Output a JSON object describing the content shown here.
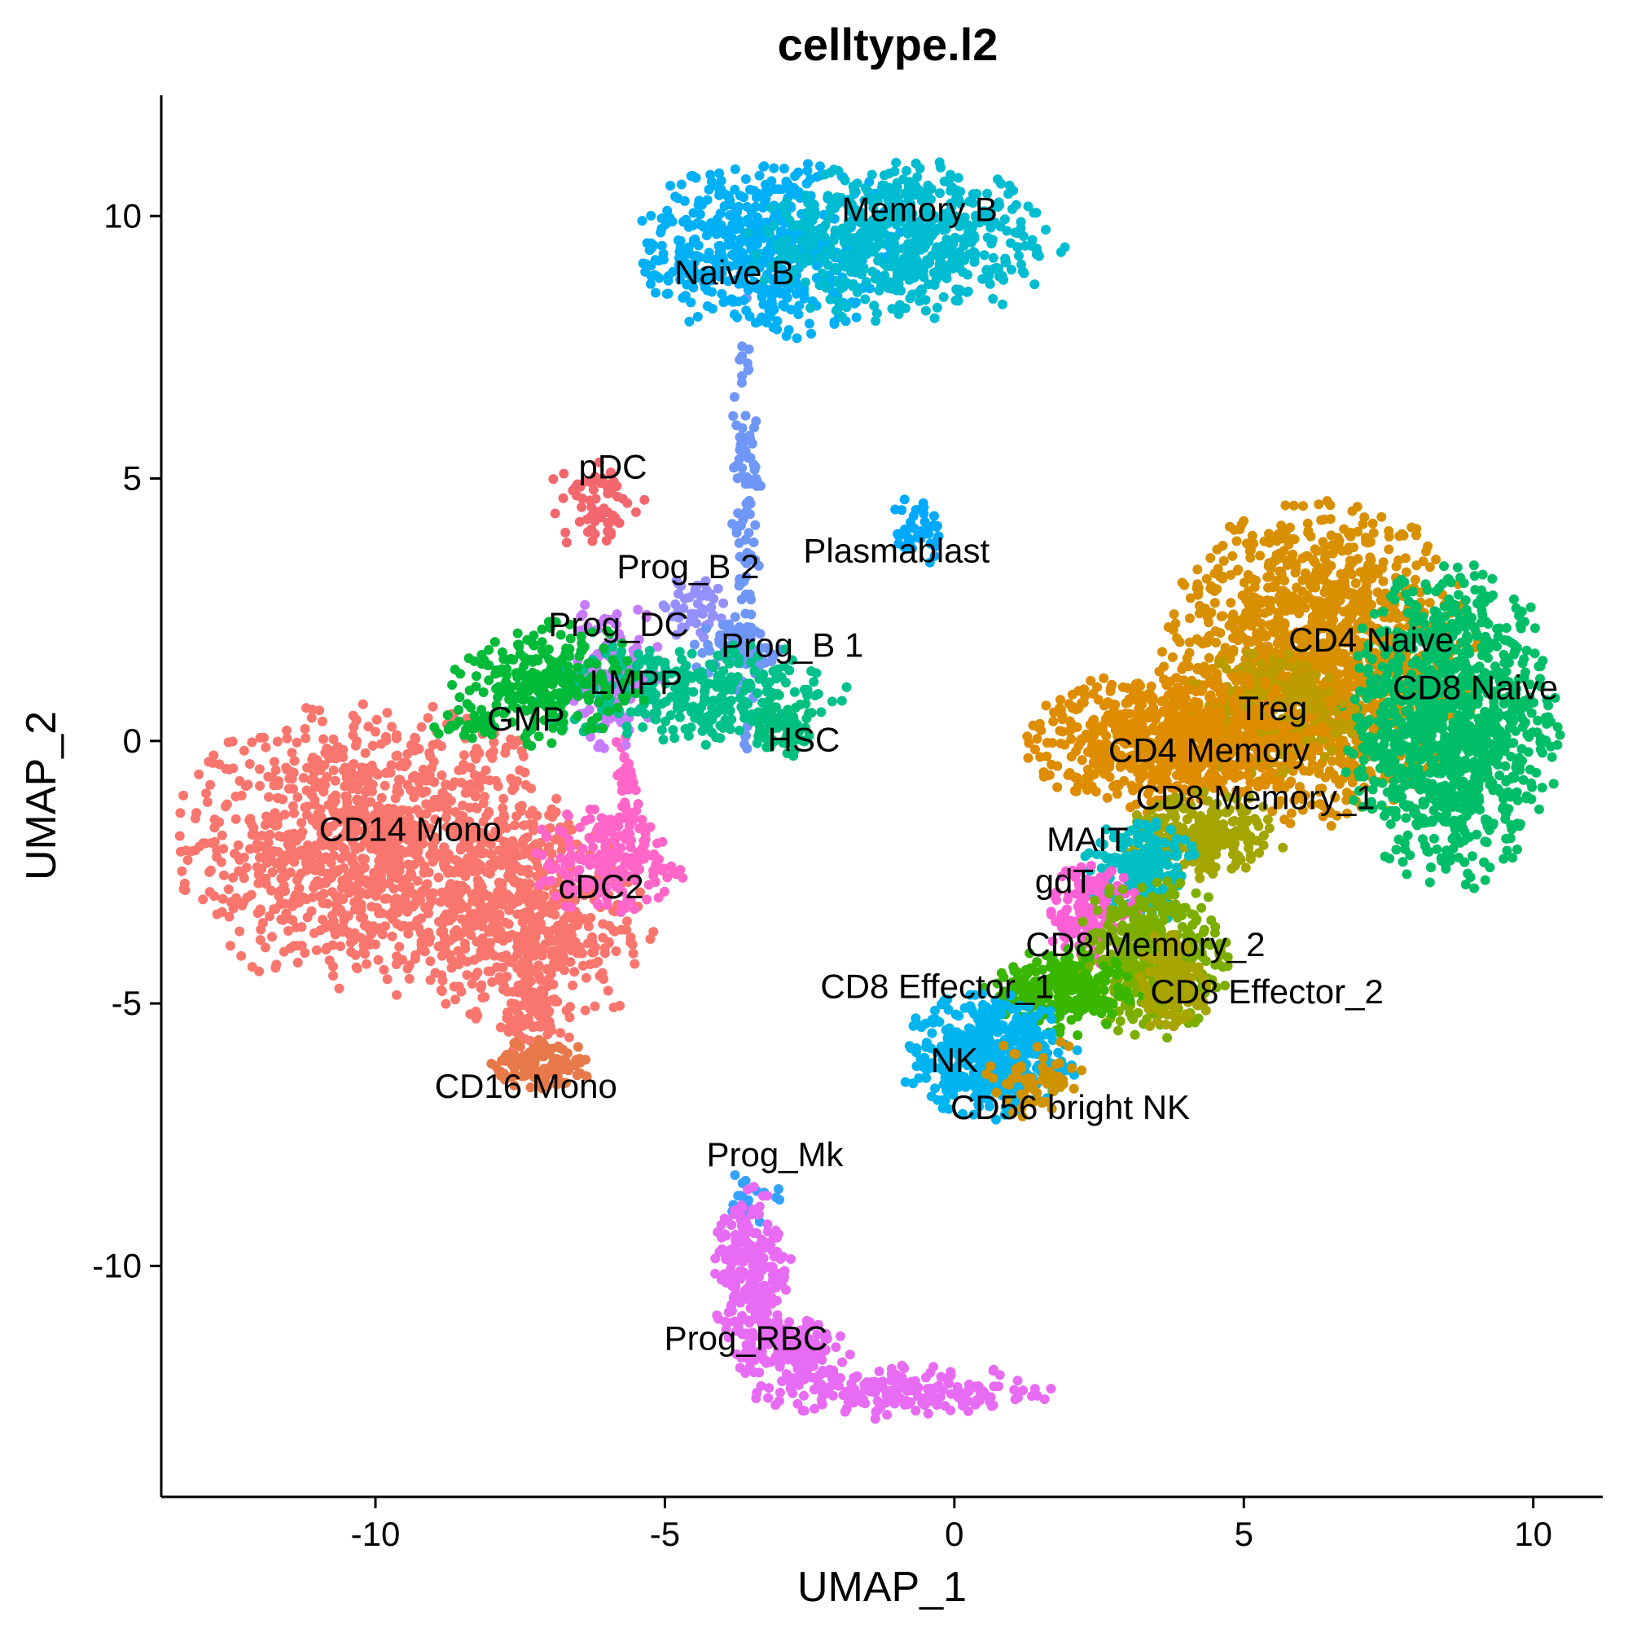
{
  "chart_data": {
    "type": "scatter",
    "title": "celltype.l2",
    "xlabel": "UMAP_1",
    "ylabel": "UMAP_2",
    "xlim": [
      -13.7,
      11.2
    ],
    "ylim": [
      -14.4,
      12.3
    ],
    "xticks": [
      -10,
      -5,
      0,
      5,
      10
    ],
    "yticks": [
      -10,
      -5,
      0,
      5,
      10
    ],
    "xtick_labels": [
      "-10",
      "-5",
      "0",
      "5",
      "10"
    ],
    "ytick_labels": [
      "-10",
      "-5",
      "0",
      "5",
      "10"
    ],
    "grid": false,
    "legend": "none",
    "clusters": [
      {
        "name": "CD14 Mono",
        "color": "#F8766D",
        "label_pos": [
          -9.4,
          -1.9
        ],
        "blobs": [
          {
            "cx": -10,
            "cy": -2,
            "rx": 2.0,
            "ry": 1.7,
            "n": 1200
          },
          {
            "cx": -7.4,
            "cy": -3.5,
            "rx": 1.3,
            "ry": 1.3,
            "n": 500
          },
          {
            "cx": -7.2,
            "cy": -5.2,
            "rx": 0.4,
            "ry": 0.5,
            "n": 60
          }
        ]
      },
      {
        "name": "CD16 Mono",
        "color": "#E8794A",
        "label_pos": [
          -7.4,
          -6.8
        ],
        "blobs": [
          {
            "cx": -7.1,
            "cy": -6.2,
            "rx": 0.6,
            "ry": 0.3,
            "n": 120
          }
        ]
      },
      {
        "name": "cDC2",
        "color": "#FF66C8",
        "label_pos": [
          -6.1,
          -3.0
        ],
        "blobs": [
          {
            "cx": -6.0,
            "cy": -2.3,
            "rx": 0.8,
            "ry": 0.6,
            "n": 200
          },
          {
            "cx": -5.7,
            "cy": -1.0,
            "rx": 0.15,
            "ry": 0.7,
            "n": 40
          }
        ]
      },
      {
        "name": "pDC",
        "color": "#F2676E",
        "label_pos": [
          -5.9,
          5.0
        ],
        "blobs": [
          {
            "cx": -6.2,
            "cy": 4.5,
            "rx": 0.5,
            "ry": 0.6,
            "n": 60
          }
        ]
      },
      {
        "name": "Prog_B 2",
        "color": "#9590FF",
        "label_pos": [
          -4.6,
          3.1
        ],
        "blobs": [
          {
            "cx": -4.5,
            "cy": 2.5,
            "rx": 0.35,
            "ry": 0.4,
            "n": 50
          }
        ]
      },
      {
        "name": "Prog_DC",
        "color": "#C77CFF",
        "label_pos": [
          -5.8,
          2.0
        ],
        "blobs": [
          {
            "cx": -5.9,
            "cy": 1.3,
            "rx": 0.5,
            "ry": 0.9,
            "n": 140
          }
        ]
      },
      {
        "name": "Prog_B 1",
        "color": "#6F97F7",
        "label_pos": [
          -2.8,
          1.6
        ],
        "blobs": [
          {
            "cx": -3.6,
            "cy": 4.0,
            "rx": 0.15,
            "ry": 2.6,
            "n": 120
          },
          {
            "cx": -3.7,
            "cy": 1.7,
            "rx": 0.5,
            "ry": 0.4,
            "n": 60
          }
        ]
      },
      {
        "name": "LMPP",
        "color": "#00C08B",
        "label_pos": [
          -5.5,
          0.9
        ],
        "blobs": [
          {
            "cx": -4.6,
            "cy": 0.9,
            "rx": 1.6,
            "ry": 0.6,
            "n": 300
          }
        ]
      },
      {
        "name": "GMP",
        "color": "#00BA38",
        "label_pos": [
          -7.4,
          0.2
        ],
        "blobs": [
          {
            "cx": -7.0,
            "cy": 1.1,
            "rx": 1.0,
            "ry": 0.7,
            "n": 260
          },
          {
            "cx": -8.4,
            "cy": 0.3,
            "rx": 0.4,
            "ry": 0.2,
            "n": 30
          }
        ]
      },
      {
        "name": "HSC",
        "color": "#00BF7D",
        "label_pos": [
          -2.6,
          -0.2
        ],
        "blobs": [
          {
            "cx": -2.9,
            "cy": 0.3,
            "rx": 0.4,
            "ry": 0.4,
            "n": 60
          }
        ]
      },
      {
        "name": "Naive B",
        "color": "#00B0F6",
        "label_pos": [
          -3.8,
          8.7
        ],
        "blobs": [
          {
            "cx": -3.2,
            "cy": 9.4,
            "rx": 1.4,
            "ry": 1.0,
            "n": 600
          }
        ]
      },
      {
        "name": "Memory B",
        "color": "#00BCD0",
        "label_pos": [
          -0.6,
          9.9
        ],
        "blobs": [
          {
            "cx": -0.8,
            "cy": 9.5,
            "rx": 1.6,
            "ry": 0.9,
            "n": 600
          }
        ]
      },
      {
        "name": "Plasmablast",
        "color": "#00A9FF",
        "label_pos": [
          -1.0,
          3.4
        ],
        "blobs": [
          {
            "cx": -0.6,
            "cy": 4.0,
            "rx": 0.3,
            "ry": 0.4,
            "n": 40
          }
        ]
      },
      {
        "name": "CD4 Naive",
        "color": "#D89000",
        "label_pos": [
          7.2,
          1.7
        ],
        "blobs": [
          {
            "cx": 6.3,
            "cy": 1.5,
            "rx": 1.6,
            "ry": 1.8,
            "n": 1400
          }
        ]
      },
      {
        "name": "CD8 Naive",
        "color": "#00BE67",
        "label_pos": [
          9.0,
          0.8
        ],
        "blobs": [
          {
            "cx": 8.6,
            "cy": 0.3,
            "rx": 1.1,
            "ry": 1.8,
            "n": 1100
          }
        ]
      },
      {
        "name": "Treg",
        "color": "#BB9D00",
        "label_pos": [
          5.5,
          0.4
        ],
        "blobs": [
          {
            "cx": 5.4,
            "cy": 0.5,
            "rx": 0.9,
            "ry": 0.7,
            "n": 300
          }
        ]
      },
      {
        "name": "CD4 Memory",
        "color": "#DE8C00",
        "label_pos": [
          4.4,
          -0.4
        ],
        "blobs": [
          {
            "cx": 3.8,
            "cy": 0.0,
            "rx": 1.5,
            "ry": 0.8,
            "n": 700
          }
        ]
      },
      {
        "name": "CD8 Memory_1",
        "color": "#A3A500",
        "label_pos": [
          5.2,
          -1.3
        ],
        "blobs": [
          {
            "cx": 4.2,
            "cy": -1.8,
            "rx": 0.9,
            "ry": 0.5,
            "n": 250
          }
        ]
      },
      {
        "name": "MAIT",
        "color": "#00BFC4",
        "label_pos": [
          2.3,
          -2.1
        ],
        "blobs": [
          {
            "cx": 3.2,
            "cy": -2.5,
            "rx": 0.6,
            "ry": 0.6,
            "n": 220
          }
        ]
      },
      {
        "name": "gdT",
        "color": "#FB61D7",
        "label_pos": [
          1.9,
          -2.9
        ],
        "blobs": [
          {
            "cx": 2.4,
            "cy": -3.3,
            "rx": 0.5,
            "ry": 0.6,
            "n": 150
          }
        ]
      },
      {
        "name": "CD8 Memory_2",
        "color": "#7CAE00",
        "label_pos": [
          3.3,
          -4.1
        ],
        "blobs": [
          {
            "cx": 3.4,
            "cy": -4.1,
            "rx": 0.8,
            "ry": 0.9,
            "n": 400
          }
        ]
      },
      {
        "name": "CD8 Effector_1",
        "color": "#39B600",
        "label_pos": [
          -0.3,
          -4.9
        ],
        "blobs": [
          {
            "cx": 1.9,
            "cy": -4.8,
            "rx": 0.8,
            "ry": 0.5,
            "n": 250
          }
        ]
      },
      {
        "name": "CD8 Effector_2",
        "color": "#A8A400",
        "label_pos": [
          5.4,
          -5.0
        ],
        "blobs": [
          {
            "cx": 3.8,
            "cy": -4.6,
            "rx": 0.4,
            "ry": 0.6,
            "n": 120
          }
        ]
      },
      {
        "name": "NK",
        "color": "#00B4EF",
        "label_pos": [
          0.0,
          -6.3
        ],
        "blobs": [
          {
            "cx": 0.6,
            "cy": -6.0,
            "rx": 0.9,
            "ry": 0.7,
            "n": 450
          }
        ]
      },
      {
        "name": "CD56 bright NK",
        "color": "#CF9300",
        "label_pos": [
          2.0,
          -7.2
        ],
        "blobs": [
          {
            "cx": 1.4,
            "cy": -6.4,
            "rx": 0.5,
            "ry": 0.5,
            "n": 60
          }
        ]
      },
      {
        "name": "Prog_Mk",
        "color": "#35A2FF",
        "label_pos": [
          -3.1,
          -8.1
        ],
        "blobs": [
          {
            "cx": -3.5,
            "cy": -8.7,
            "rx": 0.3,
            "ry": 0.3,
            "n": 20
          }
        ]
      },
      {
        "name": "Prog_RBC",
        "color": "#E76BF3",
        "label_pos": [
          -3.6,
          -11.6
        ],
        "blobs": [
          {
            "cx": -3.5,
            "cy": -10.2,
            "rx": 0.4,
            "ry": 1.0,
            "n": 250
          },
          {
            "cx": -2.8,
            "cy": -11.6,
            "rx": 0.6,
            "ry": 0.4,
            "n": 150
          },
          {
            "cx": -0.9,
            "cy": -12.4,
            "rx": 1.5,
            "ry": 0.3,
            "n": 200
          }
        ]
      }
    ]
  }
}
